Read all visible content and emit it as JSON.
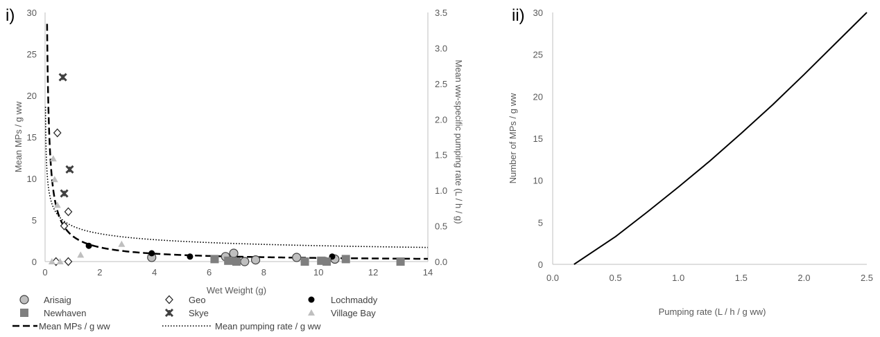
{
  "chart_data": [
    {
      "panel_label": "i)",
      "type": "scatter",
      "xlabel": "Wet Weight (g)",
      "ylabel": "Mean MPs / g ww",
      "y2label": "Mean ww-specific pumping rate (L / h / g)",
      "xlim": [
        0,
        14
      ],
      "ylim": [
        0,
        30
      ],
      "y2lim": [
        0,
        3.5
      ],
      "xticks": [
        "0",
        "2",
        "4",
        "6",
        "8",
        "10",
        "12",
        "14"
      ],
      "yticks": [
        "0",
        "5",
        "10",
        "15",
        "20",
        "25",
        "30"
      ],
      "y2ticks": [
        "0.0",
        "0.5",
        "1.0",
        "1.5",
        "2.0",
        "2.5",
        "3.0",
        "3.5"
      ],
      "grid": false,
      "legend_position": "bottom",
      "series": [
        {
          "name": "Arisaig",
          "marker": "circle-grey",
          "x": [
            3.9,
            6.6,
            6.9,
            7.3,
            7.7,
            9.2,
            10.6
          ],
          "y": [
            0.5,
            0.6,
            1.0,
            0.0,
            0.2,
            0.5,
            0.3
          ]
        },
        {
          "name": "Geo",
          "marker": "diamond-open",
          "x": [
            0.4,
            0.45,
            0.7,
            0.85,
            0.85
          ],
          "y": [
            0.0,
            15.5,
            4.3,
            6.0,
            0.0
          ]
        },
        {
          "name": "Lochmaddy",
          "marker": "dot-black",
          "x": [
            1.6,
            3.9,
            5.3,
            10.5
          ],
          "y": [
            1.9,
            1.0,
            0.6,
            0.6
          ]
        },
        {
          "name": "Newhaven",
          "marker": "square-grey",
          "x": [
            6.2,
            6.7,
            7.0,
            9.5,
            10.1,
            10.3,
            11.0,
            13.0
          ],
          "y": [
            0.3,
            0.1,
            0.0,
            0.0,
            0.1,
            0.0,
            0.3,
            0.0
          ]
        },
        {
          "name": "Skye",
          "marker": "x-star",
          "x": [
            0.65,
            0.7,
            0.9
          ],
          "y": [
            22.2,
            8.2,
            11.1
          ]
        },
        {
          "name": "Village Bay",
          "marker": "triangle-light",
          "x": [
            0.25,
            0.3,
            0.35,
            0.45,
            0.55,
            1.3,
            2.8
          ],
          "y": [
            0.0,
            12.4,
            9.9,
            6.8,
            0.0,
            0.8,
            2.1
          ]
        }
      ],
      "curves": [
        {
          "name": "Mean MPs / g ww",
          "style": "dashed",
          "axis": "left",
          "model": "power",
          "a": 3.1,
          "b": -0.85
        },
        {
          "name": "Mean pumping rate / g ww",
          "style": "dotted",
          "axis": "right",
          "model": "power",
          "a": 0.5,
          "b": -0.35
        }
      ]
    },
    {
      "panel_label": "ii)",
      "type": "line",
      "xlabel": "Pumping rate (L / h / g ww)",
      "ylabel": "Number of MPs / g ww",
      "xlim": [
        0,
        2.5
      ],
      "ylim": [
        0,
        30
      ],
      "xticks": [
        "0.0",
        "0.5",
        "1.0",
        "1.5",
        "2.0",
        "2.5"
      ],
      "yticks": [
        "0",
        "5",
        "10",
        "15",
        "20",
        "25",
        "30"
      ],
      "grid": false,
      "series": [
        {
          "x": [
            0.17,
            0.5,
            0.75,
            1.0,
            1.25,
            1.5,
            1.75,
            2.0,
            2.25,
            2.5
          ],
          "y": [
            0.0,
            3.3,
            6.2,
            9.2,
            12.3,
            15.6,
            19.0,
            22.6,
            26.3,
            30.0
          ]
        }
      ]
    }
  ]
}
